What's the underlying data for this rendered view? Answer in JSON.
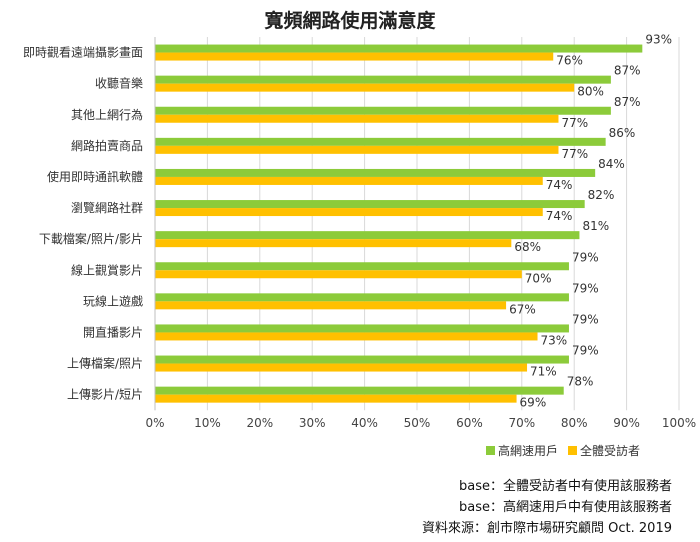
{
  "chart_data": {
    "type": "bar",
    "orientation": "horizontal",
    "title": "寬頻網路使用滿意度",
    "categories": [
      "即時觀看遠端攝影畫面",
      "收聽音樂",
      "其他上網行為",
      "網路拍賣商品",
      "使用即時通訊軟體",
      "瀏覽網路社群",
      "下載檔案/照片/影片",
      "線上觀賞影片",
      "玩線上遊戲",
      "開直播影片",
      "上傳檔案/照片",
      "上傳影片/短片"
    ],
    "series": [
      {
        "name": "高網速用戶",
        "color": "#8CCB3A",
        "values": [
          93,
          87,
          87,
          86,
          84,
          82,
          81,
          79,
          79,
          79,
          79,
          78
        ],
        "labels": [
          "93%",
          "87%",
          "87%",
          "86%",
          "84%",
          "82%",
          "81%",
          "79%",
          "79%",
          "79%",
          "79%",
          "78%"
        ]
      },
      {
        "name": "全體受訪者",
        "color": "#FFC000",
        "values": [
          76,
          80,
          77,
          77,
          74,
          74,
          68,
          70,
          67,
          73,
          71,
          69
        ],
        "labels": [
          "76%",
          "80%",
          "77%",
          "77%",
          "74%",
          "74%",
          "68%",
          "70%",
          "67%",
          "73%",
          "71%",
          "69%"
        ]
      }
    ],
    "xlim": [
      0,
      100
    ],
    "xticks": [
      "0%",
      "10%",
      "20%",
      "30%",
      "40%",
      "50%",
      "60%",
      "70%",
      "80%",
      "90%",
      "100%"
    ],
    "grid": true,
    "legend_position": "bottom-right"
  },
  "notes": [
    "base：全體受訪者中有使用該服務者",
    "base：高網速用戶中有使用該服務者",
    "資料來源：創市際市場研究顧問 Oct. 2019"
  ]
}
